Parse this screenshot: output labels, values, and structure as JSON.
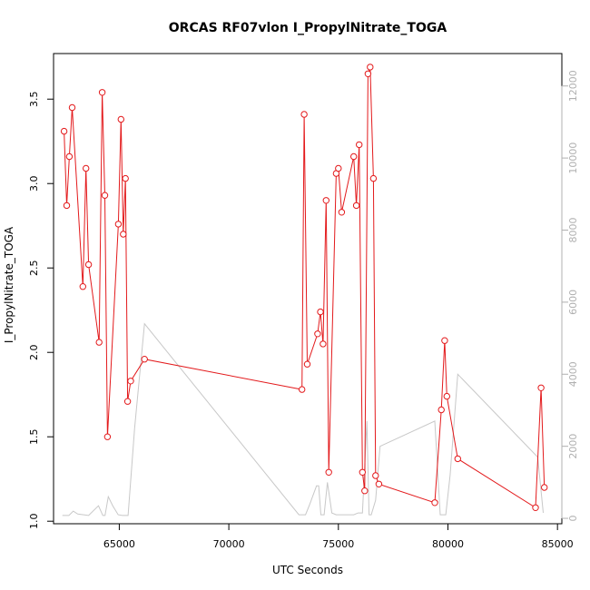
{
  "chart_data": {
    "type": "line",
    "title": "ORCAS RF07vlon I_PropylNitrate_TOGA",
    "xlabel": "UTC Seconds",
    "ylabel": "I_PropylNitrate_TOGA",
    "xlim": [
      62000,
      85200
    ],
    "ylim": [
      0.985,
      3.77
    ],
    "y2lim": [
      -150,
      12900
    ],
    "x_ticks": [
      65000,
      70000,
      75000,
      80000,
      85000
    ],
    "y_ticks": [
      1.0,
      1.5,
      2.0,
      2.5,
      3.0,
      3.5
    ],
    "y2_ticks": [
      0,
      2000,
      4000,
      6000,
      8000,
      10000,
      12000
    ],
    "x_tick_labels": [
      "65000",
      "70000",
      "75000",
      "80000",
      "85000"
    ],
    "y_tick_labels": [
      "1.0",
      "1.5",
      "2.0",
      "2.5",
      "3.0",
      "3.5"
    ],
    "y2_tick_labels": [
      "0",
      "2000",
      "4000",
      "6000",
      "8000",
      "10000",
      "12000"
    ],
    "grid": false,
    "colors": {
      "primary": "#e31a1c",
      "secondary": "#c8c8c8"
    },
    "series": [
      {
        "axis": "left",
        "color": "#e31a1c",
        "markers": "open-circle",
        "x": [
          62480,
          62600,
          62720,
          62850,
          63340,
          63480,
          63600,
          64080,
          64220,
          64340,
          64460,
          64960,
          65080,
          65180,
          65280,
          65380,
          65520,
          66150,
          73340,
          73440,
          73580,
          74050,
          74180,
          74300,
          74440,
          74560,
          74900,
          75000,
          75150,
          75700,
          75820,
          75950,
          76100,
          76200,
          76350,
          76450,
          76600,
          76700,
          76850,
          79400,
          79700,
          79850,
          79950,
          80450,
          84000,
          84250,
          84400
        ],
        "y": [
          3.31,
          2.87,
          3.16,
          3.45,
          2.39,
          3.09,
          2.52,
          2.06,
          3.54,
          2.93,
          1.5,
          2.76,
          3.38,
          2.7,
          3.03,
          1.71,
          1.83,
          1.96,
          1.78,
          3.41,
          1.93,
          2.11,
          2.24,
          2.05,
          2.9,
          1.29,
          3.06,
          3.09,
          2.83,
          3.16,
          2.87,
          3.23,
          1.29,
          1.18,
          3.65,
          3.69,
          3.03,
          1.27,
          1.22,
          1.11,
          1.66,
          2.07,
          1.74,
          1.37,
          1.08,
          1.79,
          1.2
        ]
      },
      {
        "axis": "right",
        "color": "#c8c8c8",
        "markers": "none",
        "x": [
          62400,
          62700,
          62900,
          63100,
          63600,
          64050,
          64250,
          64350,
          64500,
          64700,
          64950,
          65150,
          65400,
          65700,
          66150,
          73200,
          73500,
          73700,
          74000,
          74100,
          74200,
          74350,
          74500,
          74700,
          74900,
          75300,
          75700,
          75900,
          76100,
          76300,
          76400,
          76500,
          76700,
          76900,
          79400,
          79650,
          79900,
          80100,
          80450,
          84100,
          84350
        ],
        "y": [
          80,
          80,
          200,
          120,
          80,
          350,
          80,
          80,
          600,
          350,
          100,
          80,
          80,
          2500,
          5400,
          100,
          100,
          400,
          900,
          900,
          100,
          100,
          1000,
          150,
          100,
          100,
          100,
          150,
          150,
          2700,
          100,
          100,
          500,
          2000,
          2700,
          100,
          100,
          1200,
          4000,
          1700,
          150
        ]
      }
    ]
  }
}
